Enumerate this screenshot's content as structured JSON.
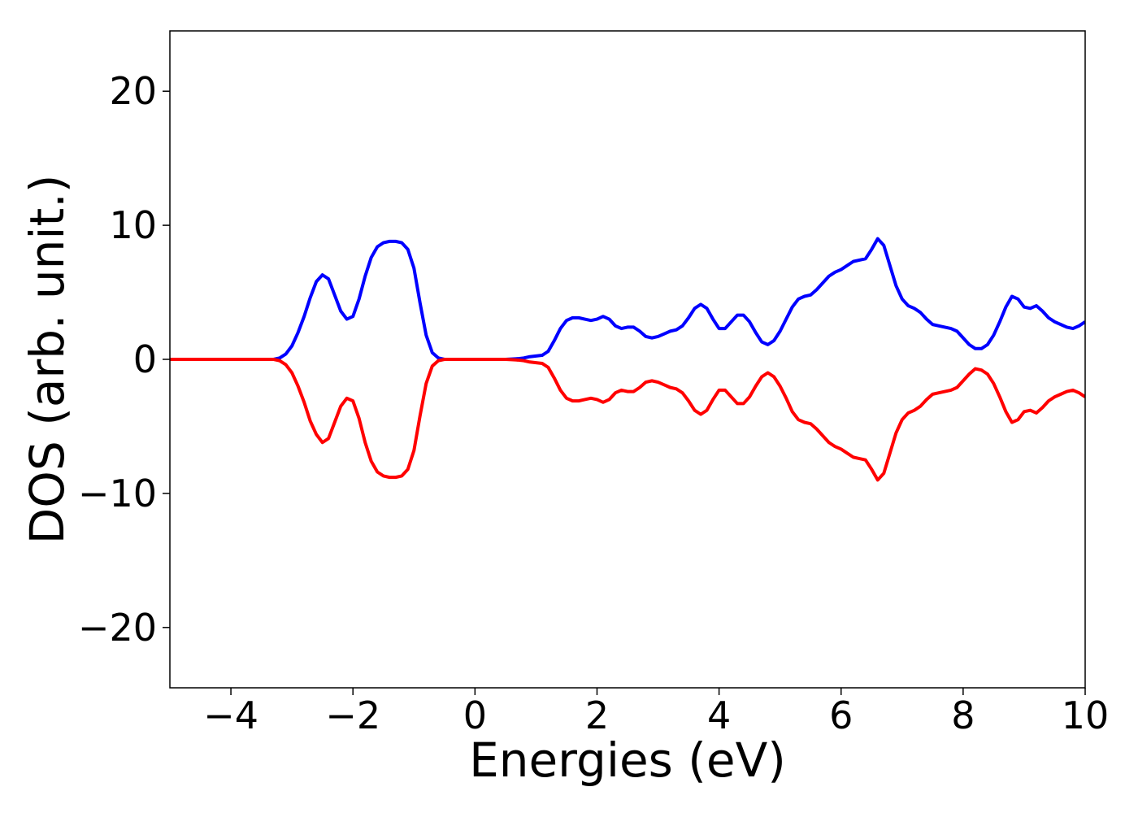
{
  "chart_data": {
    "type": "line",
    "xlabel": "Energies (eV)",
    "ylabel": "DOS (arb. unit.)",
    "x": [
      -5,
      -4,
      -3.3,
      -3.2,
      -3.1,
      -3.0,
      -2.9,
      -2.8,
      -2.7,
      -2.6,
      -2.5,
      -2.4,
      -2.3,
      -2.2,
      -2.1,
      -2.0,
      -1.9,
      -1.8,
      -1.7,
      -1.6,
      -1.5,
      -1.4,
      -1.3,
      -1.2,
      -1.1,
      -1.0,
      -0.9,
      -0.8,
      -0.7,
      -0.6,
      -0.5,
      0,
      0.5,
      0.6,
      0.7,
      0.8,
      0.9,
      1.0,
      1.1,
      1.2,
      1.3,
      1.4,
      1.5,
      1.6,
      1.7,
      1.8,
      1.9,
      2.0,
      2.1,
      2.2,
      2.3,
      2.4,
      2.5,
      2.6,
      2.7,
      2.8,
      2.9,
      3.0,
      3.1,
      3.2,
      3.3,
      3.4,
      3.5,
      3.6,
      3.7,
      3.8,
      3.9,
      4.0,
      4.1,
      4.2,
      4.3,
      4.4,
      4.5,
      4.6,
      4.7,
      4.8,
      4.9,
      5.0,
      5.1,
      5.2,
      5.3,
      5.4,
      5.5,
      5.6,
      5.7,
      5.8,
      5.9,
      6.0,
      6.1,
      6.2,
      6.3,
      6.4,
      6.5,
      6.6,
      6.7,
      6.8,
      6.9,
      7.0,
      7.1,
      7.2,
      7.3,
      7.4,
      7.5,
      7.6,
      7.7,
      7.8,
      7.9,
      8.0,
      8.1,
      8.2,
      8.3,
      8.4,
      8.5,
      8.6,
      8.7,
      8.8,
      8.9,
      9.0,
      9.1,
      9.2,
      9.3,
      9.4,
      9.5,
      9.6,
      9.7,
      9.8,
      9.9,
      10.0
    ],
    "series": [
      {
        "color": "#0000ff",
        "values": [
          0,
          0,
          0,
          0.1,
          0.4,
          1.0,
          2.0,
          3.2,
          4.6,
          5.8,
          6.3,
          6.0,
          4.8,
          3.6,
          3.0,
          3.2,
          4.5,
          6.2,
          7.6,
          8.4,
          8.7,
          8.8,
          8.8,
          8.7,
          8.2,
          6.8,
          4.2,
          1.8,
          0.5,
          0.1,
          0,
          0,
          0,
          0.02,
          0.05,
          0.1,
          0.2,
          0.25,
          0.3,
          0.6,
          1.4,
          2.3,
          2.9,
          3.1,
          3.1,
          3.0,
          2.9,
          3.0,
          3.2,
          3.0,
          2.5,
          2.3,
          2.4,
          2.4,
          2.1,
          1.7,
          1.6,
          1.7,
          1.9,
          2.1,
          2.2,
          2.5,
          3.1,
          3.8,
          4.1,
          3.8,
          3.0,
          2.3,
          2.3,
          2.8,
          3.3,
          3.3,
          2.8,
          2.0,
          1.3,
          1.1,
          1.4,
          2.1,
          3.0,
          3.9,
          4.5,
          4.7,
          4.8,
          5.2,
          5.7,
          6.2,
          6.5,
          6.7,
          7.0,
          7.3,
          7.4,
          7.5,
          8.2,
          9.0,
          8.5,
          7.0,
          5.5,
          4.5,
          4.0,
          3.8,
          3.5,
          3.0,
          2.6,
          2.5,
          2.4,
          2.3,
          2.1,
          1.6,
          1.1,
          0.8,
          0.8,
          1.1,
          1.8,
          2.8,
          3.9,
          4.7,
          4.5,
          3.9,
          3.8,
          4.0,
          3.6,
          3.1,
          2.8,
          2.6,
          2.4,
          2.3,
          2.5,
          2.8
        ]
      },
      {
        "color": "#ff0000",
        "values": [
          0,
          0,
          0,
          -0.1,
          -0.4,
          -1.0,
          -2.0,
          -3.2,
          -4.6,
          -5.6,
          -6.2,
          -5.9,
          -4.7,
          -3.5,
          -2.9,
          -3.1,
          -4.4,
          -6.2,
          -7.6,
          -8.4,
          -8.7,
          -8.8,
          -8.8,
          -8.7,
          -8.2,
          -6.8,
          -4.2,
          -1.8,
          -0.5,
          -0.1,
          0,
          0,
          0,
          -0.02,
          -0.05,
          -0.1,
          -0.2,
          -0.25,
          -0.3,
          -0.6,
          -1.4,
          -2.3,
          -2.9,
          -3.1,
          -3.1,
          -3.0,
          -2.9,
          -3.0,
          -3.2,
          -3.0,
          -2.5,
          -2.3,
          -2.4,
          -2.4,
          -2.1,
          -1.7,
          -1.6,
          -1.7,
          -1.9,
          -2.1,
          -2.2,
          -2.5,
          -3.1,
          -3.8,
          -4.1,
          -3.8,
          -3.0,
          -2.3,
          -2.3,
          -2.8,
          -3.3,
          -3.3,
          -2.8,
          -2.0,
          -1.3,
          -1.0,
          -1.3,
          -2.0,
          -2.9,
          -3.9,
          -4.5,
          -4.7,
          -4.8,
          -5.2,
          -5.7,
          -6.2,
          -6.5,
          -6.7,
          -7.0,
          -7.3,
          -7.4,
          -7.5,
          -8.2,
          -9.0,
          -8.5,
          -7.0,
          -5.5,
          -4.5,
          -4.0,
          -3.8,
          -3.5,
          -3.0,
          -2.6,
          -2.5,
          -2.4,
          -2.3,
          -2.1,
          -1.6,
          -1.1,
          -0.7,
          -0.8,
          -1.1,
          -1.8,
          -2.8,
          -3.9,
          -4.7,
          -4.5,
          -3.9,
          -3.8,
          -4.0,
          -3.6,
          -3.1,
          -2.8,
          -2.6,
          -2.4,
          -2.3,
          -2.5,
          -2.8
        ]
      }
    ],
    "xlim": [
      -5,
      10
    ],
    "xticks": [
      {
        "value": -4,
        "label": "−4"
      },
      {
        "value": -2,
        "label": "−2"
      },
      0,
      2,
      4,
      6,
      8,
      10
    ],
    "ylim": [
      -24.5,
      24.5
    ],
    "yticks": [
      {
        "value": -20,
        "label": "−20"
      },
      {
        "value": -10,
        "label": "−10"
      },
      0,
      10,
      20
    ],
    "grid": false
  }
}
